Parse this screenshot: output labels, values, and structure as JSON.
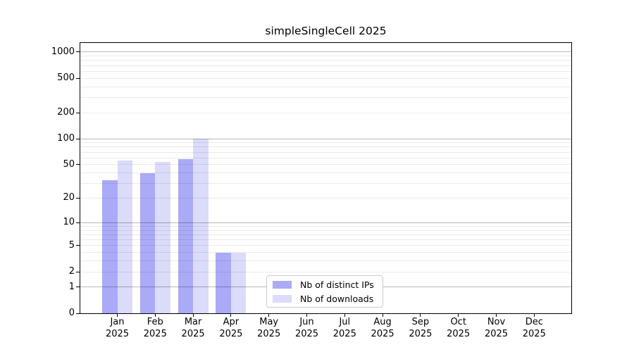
{
  "chart_data": {
    "type": "bar",
    "title": "simpleSingleCell 2025",
    "categories": [
      "Jan",
      "Feb",
      "Mar",
      "Apr",
      "May",
      "Jun",
      "Jul",
      "Aug",
      "Sep",
      "Oct",
      "Nov",
      "Dec"
    ],
    "category_year": "2025",
    "series": [
      {
        "name": "Nb of distinct IPs",
        "color": "#aaaaf7",
        "values": [
          33,
          40,
          58,
          4,
          0,
          0,
          0,
          0,
          0,
          0,
          0,
          0
        ]
      },
      {
        "name": "Nb of downloads",
        "color": "#dbdbfa",
        "values": [
          56,
          54,
          100,
          4,
          0,
          0,
          0,
          0,
          0,
          0,
          0,
          0
        ]
      }
    ],
    "y_ticks": [
      0,
      1,
      2,
      5,
      10,
      20,
      50,
      100,
      200,
      500,
      1000
    ],
    "y_scale": "log10(1+value)",
    "ylim": [
      0,
      1270
    ],
    "xlabel": "",
    "ylabel": "",
    "grid": {
      "major_values": [
        1,
        10,
        100,
        1000
      ],
      "minor_per_decade": [
        2,
        3,
        4,
        5,
        6,
        7,
        8,
        9
      ]
    },
    "legend_position": "inside-bottom-center"
  },
  "colors": {
    "bar_distinct_ips": "#aaaaf7",
    "bar_downloads": "#dbdbfa",
    "grid_major": "rgba(0,0,0,0.27)",
    "grid_minor": "rgba(0,0,0,0.08)",
    "axis": "#000000",
    "background": "#ffffff",
    "legend_border": "#cccccc"
  }
}
